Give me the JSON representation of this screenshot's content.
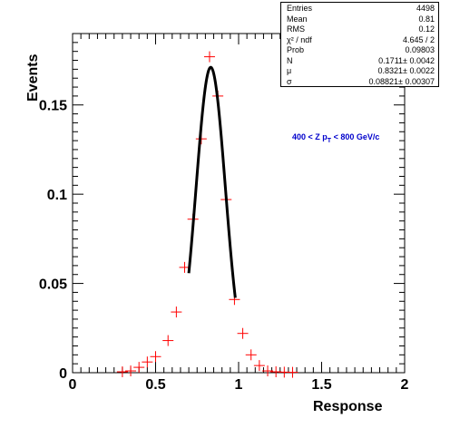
{
  "chart_data": {
    "type": "scatter",
    "xlabel": "Response",
    "ylabel": "Events",
    "xlim": [
      0,
      2
    ],
    "ylim": [
      0,
      0.19
    ],
    "x_ticks": [
      "0",
      "0.5",
      "1",
      "1.5",
      "2"
    ],
    "y_ticks": [
      "0",
      "0.05",
      "0.1",
      "0.15"
    ],
    "annotation": "400 < Z p_T < 800 GeV/c",
    "points": {
      "x": [
        0.3,
        0.35,
        0.4,
        0.45,
        0.5,
        0.575,
        0.625,
        0.675,
        0.725,
        0.775,
        0.825,
        0.875,
        0.925,
        0.975,
        1.025,
        1.075,
        1.125,
        1.175,
        1.225,
        1.275,
        1.325
      ],
      "y": [
        0.0005,
        0.001,
        0.003,
        0.006,
        0.009,
        0.018,
        0.034,
        0.059,
        0.086,
        0.131,
        0.177,
        0.155,
        0.097,
        0.041,
        0.022,
        0.01,
        0.004,
        0.001,
        0.0005,
        0.0003,
        0.0002
      ],
      "color": "#ff0000"
    },
    "fit": {
      "function": "gaussian",
      "N": 0.1711,
      "mu": 0.8321,
      "sigma": 0.08821,
      "x_range": [
        0.7,
        0.98
      ],
      "color": "#000000"
    }
  },
  "stats": [
    {
      "key": "Entries",
      "value": "4498"
    },
    {
      "key": "Mean",
      "value": "0.81"
    },
    {
      "key": "RMS",
      "value": "0.12"
    },
    {
      "key": "χ² / ndf",
      "value": "4.645 / 2"
    },
    {
      "key": "Prob",
      "value": "0.09803"
    },
    {
      "key": "N",
      "value": "0.1711± 0.0042"
    },
    {
      "key": "μ",
      "value": "0.8321± 0.0022"
    },
    {
      "key": "σ",
      "value": "0.08821± 0.00307"
    }
  ]
}
